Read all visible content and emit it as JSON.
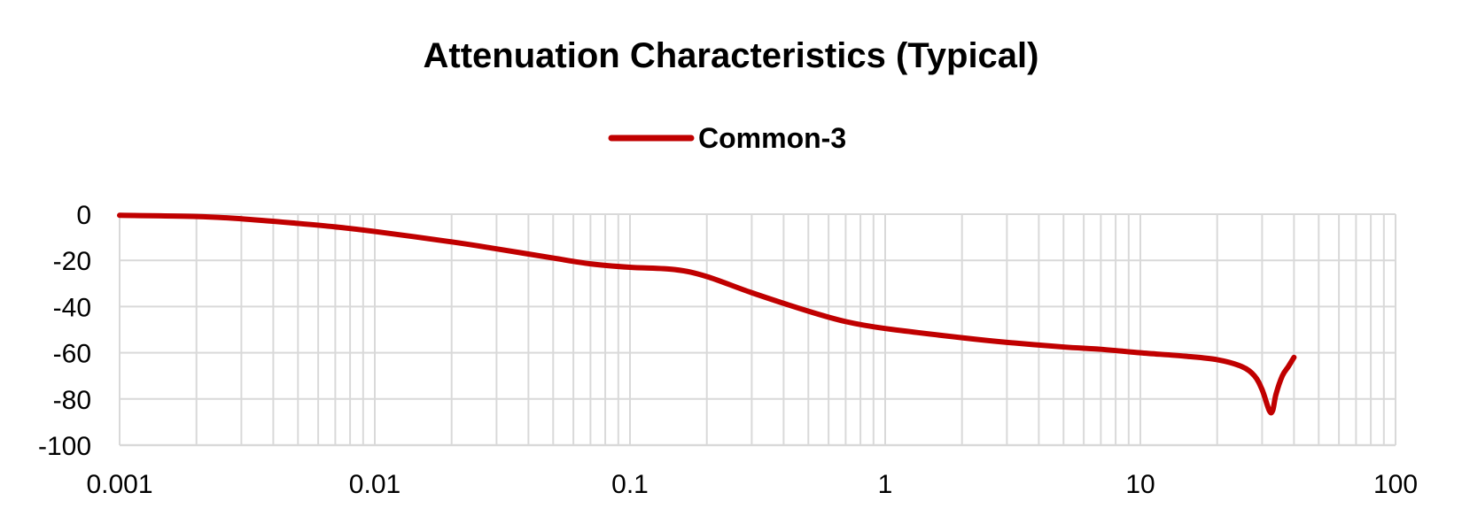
{
  "chart_data": {
    "type": "line",
    "title": "Attenuation Characteristics (Typical)",
    "xlabel": "",
    "ylabel": "",
    "x_scale": "log",
    "xlim": [
      0.001,
      100
    ],
    "ylim": [
      -100,
      0
    ],
    "grid": true,
    "legend_position": "top-center",
    "x_tick_labels": [
      "0.001",
      "0.01",
      "0.1",
      "1",
      "10",
      "100"
    ],
    "y_tick_labels": [
      "0",
      "-20",
      "-40",
      "-60",
      "-80",
      "-100"
    ],
    "series": [
      {
        "name": "Common-3",
        "color": "#c00000",
        "points": [
          {
            "x": 0.001,
            "y": -0.5
          },
          {
            "x": 0.002,
            "y": -1
          },
          {
            "x": 0.003,
            "y": -2
          },
          {
            "x": 0.005,
            "y": -4
          },
          {
            "x": 0.007,
            "y": -5.5
          },
          {
            "x": 0.01,
            "y": -7.5
          },
          {
            "x": 0.02,
            "y": -12
          },
          {
            "x": 0.03,
            "y": -15
          },
          {
            "x": 0.05,
            "y": -19
          },
          {
            "x": 0.07,
            "y": -21.5
          },
          {
            "x": 0.1,
            "y": -23
          },
          {
            "x": 0.15,
            "y": -24
          },
          {
            "x": 0.2,
            "y": -27
          },
          {
            "x": 0.3,
            "y": -34
          },
          {
            "x": 0.5,
            "y": -42
          },
          {
            "x": 0.7,
            "y": -46.5
          },
          {
            "x": 1,
            "y": -49.5
          },
          {
            "x": 2,
            "y": -53.5
          },
          {
            "x": 3,
            "y": -55.5
          },
          {
            "x": 5,
            "y": -57.5
          },
          {
            "x": 7,
            "y": -58.5
          },
          {
            "x": 10,
            "y": -60
          },
          {
            "x": 15,
            "y": -61.5
          },
          {
            "x": 20,
            "y": -63
          },
          {
            "x": 25,
            "y": -66
          },
          {
            "x": 28,
            "y": -70
          },
          {
            "x": 30,
            "y": -76
          },
          {
            "x": 32,
            "y": -85
          },
          {
            "x": 33,
            "y": -85
          },
          {
            "x": 34,
            "y": -78
          },
          {
            "x": 36,
            "y": -70
          },
          {
            "x": 38,
            "y": -66
          },
          {
            "x": 40,
            "y": -62
          }
        ]
      }
    ]
  }
}
